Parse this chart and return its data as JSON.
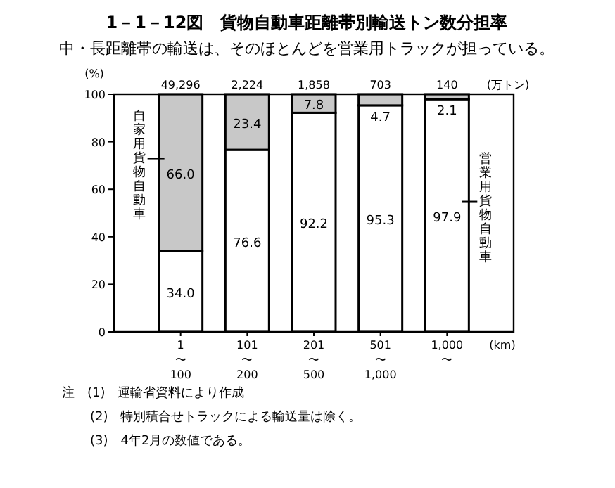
{
  "chart_data": {
    "type": "bar",
    "stacked": true,
    "title": "1－1－12図　貨物自動車距離帯別輸送トン数分担率",
    "subtitle": "中・長距離帯の輸送は、そのほとんどを営業用トラックが担っている。",
    "ylabel": "(%)",
    "xlabel": "(km)",
    "categories": [
      "1\n〜\n100",
      "101\n〜\n200",
      "201\n〜\n500",
      "501\n〜\n1,000",
      "1,000\n〜"
    ],
    "series": [
      {
        "name": "営業用貨物自動車",
        "color": "#ffffff",
        "values": [
          34.0,
          76.6,
          92.2,
          95.3,
          97.9
        ],
        "value_labels": [
          "34.0",
          "76.6",
          "92.2",
          "95.3",
          "97.9"
        ]
      },
      {
        "name": "自家用貨物自動車",
        "color": "#c8c8c8",
        "values": [
          66.0,
          23.4,
          7.8,
          4.7,
          2.1
        ],
        "value_labels": [
          "66.0",
          "23.4",
          "7.8",
          "4.7",
          "2.1"
        ]
      }
    ],
    "ylim": [
      0,
      100
    ],
    "yticks": [
      0,
      20,
      40,
      60,
      80,
      100
    ],
    "grid": false,
    "annotations": [
      "49,296",
      "2,224",
      "1,858",
      "703",
      "140",
      "(万トン)",
      "注　(1)　運輸省資料により作成",
      "(2)　特別積合せトラックによる輸送量は除く。",
      "(3)　4年2月の数値である。"
    ]
  }
}
